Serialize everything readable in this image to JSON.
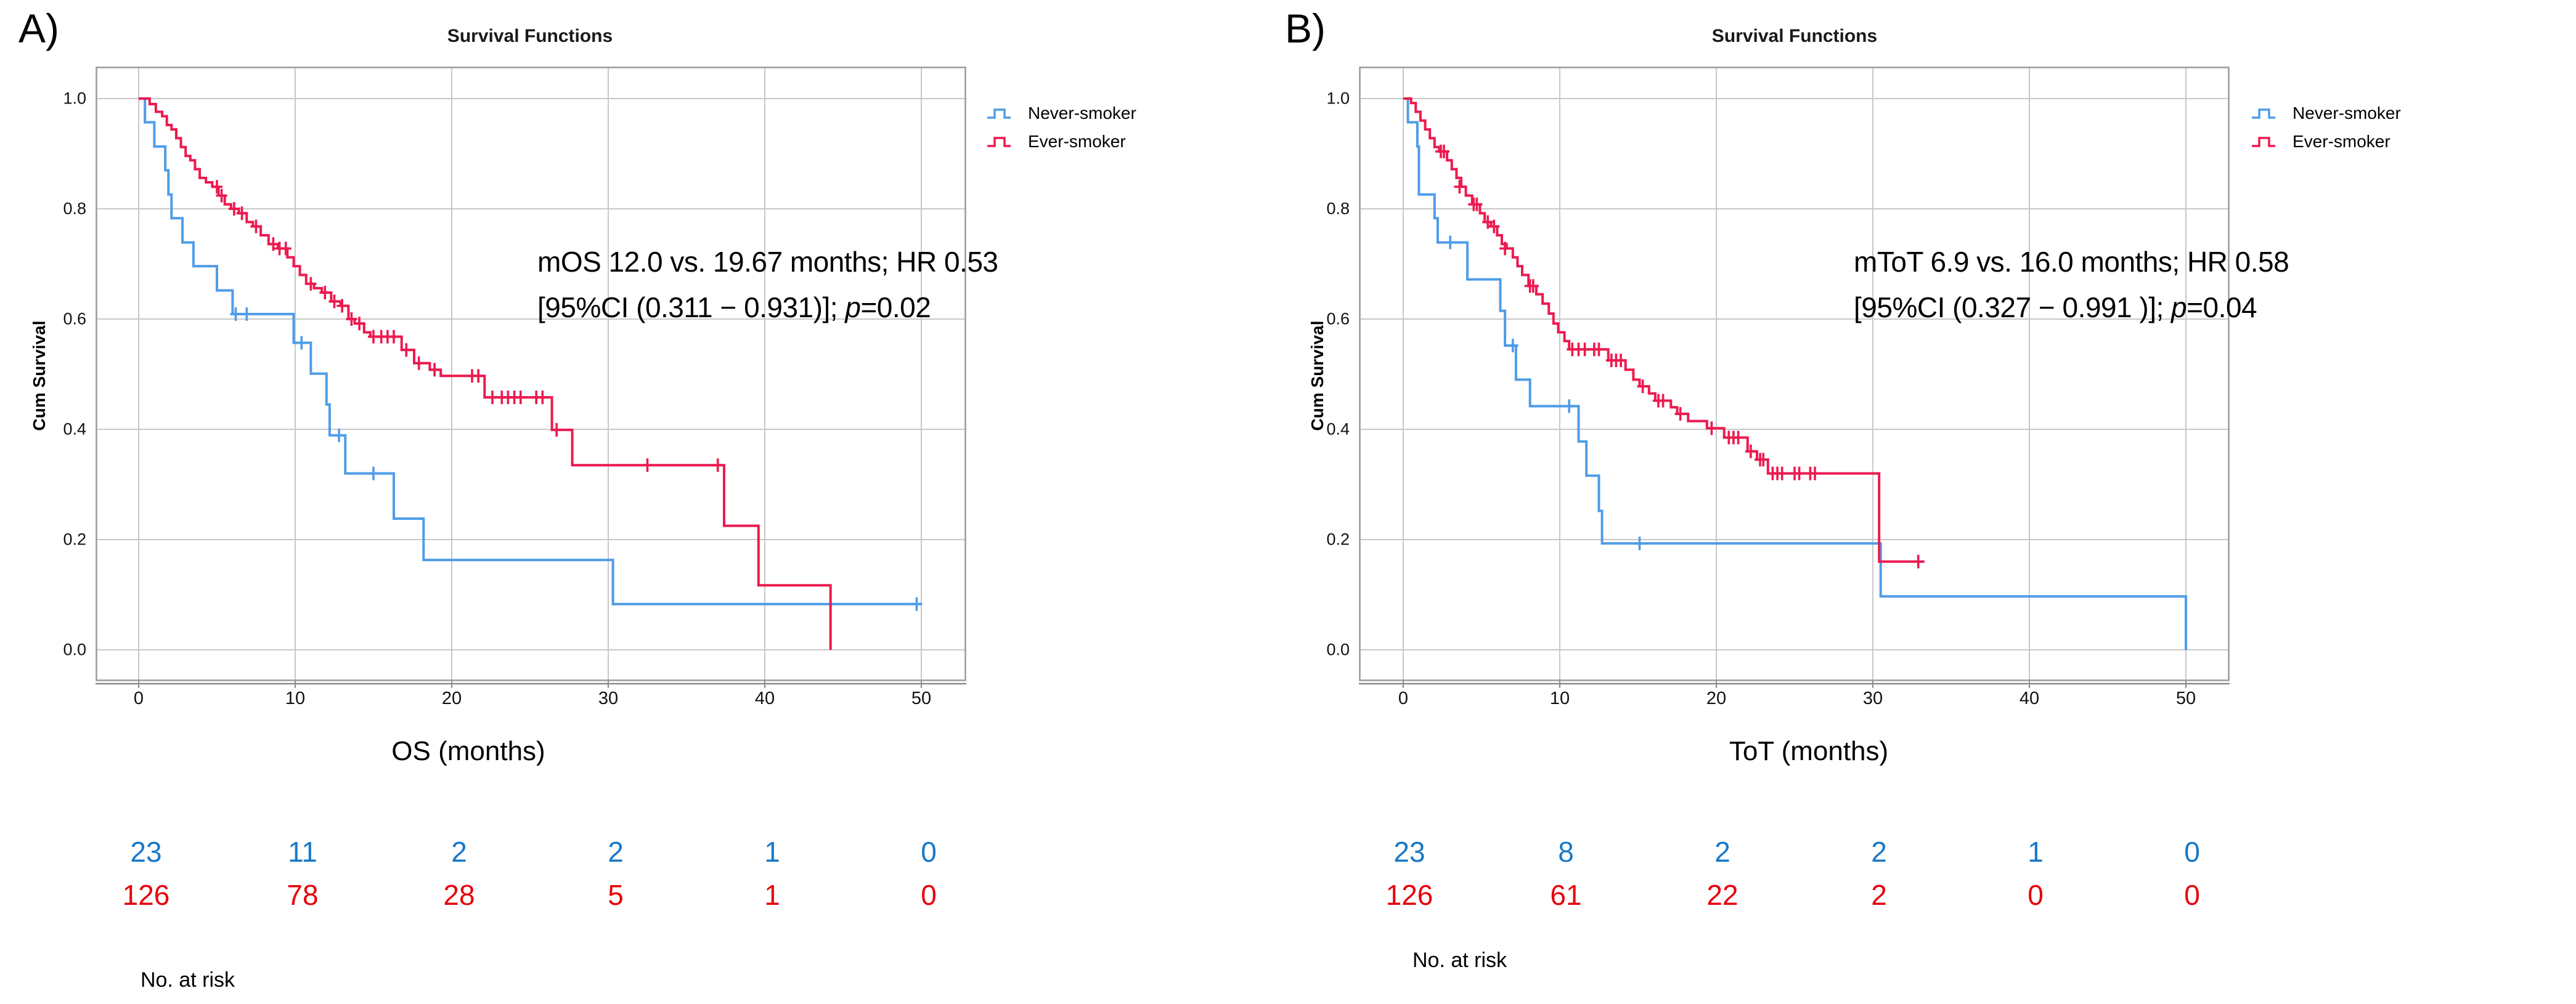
{
  "figure": {
    "background": "#ffffff",
    "grid_color": "#c8c8c8",
    "frame_color": "#9a9a9a"
  },
  "chart_data": [
    {
      "type": "line",
      "subtype": "kaplan-meier-step",
      "panel_label": "A)",
      "title": "Survival Functions",
      "xlabel": "OS (months)",
      "ylabel": "Cum Survival",
      "xlim": [
        0,
        50
      ],
      "ylim": [
        0.0,
        1.0
      ],
      "x_ticks": [
        0,
        10,
        20,
        30,
        40,
        50
      ],
      "y_tick_labels": [
        "1.0",
        "0.8",
        "0.6",
        "0.4",
        "0.2",
        "0.0"
      ],
      "grid": true,
      "legend_position": "right",
      "annotation": {
        "line1": "mOS 12.0 vs. 19.67  months; HR 0.53",
        "ci_text": "[95%CI (0.311 − 0.931)]; ",
        "p_label": "p",
        "p_value": "=0.02"
      },
      "series": [
        {
          "name": "Never-smoker",
          "color": "#4f9ce8",
          "points": [
            [
              0,
              1.0
            ],
            [
              0.4,
              0.957
            ],
            [
              1.0,
              0.913
            ],
            [
              1.7,
              0.87
            ],
            [
              1.9,
              0.826
            ],
            [
              2.1,
              0.783
            ],
            [
              2.8,
              0.739
            ],
            [
              3.5,
              0.696
            ],
            [
              5.0,
              0.652
            ],
            [
              6.0,
              0.609
            ],
            [
              9.9,
              0.557
            ],
            [
              11.0,
              0.501
            ],
            [
              12.0,
              0.445
            ],
            [
              12.2,
              0.389
            ],
            [
              13.2,
              0.32
            ],
            [
              16.3,
              0.238
            ],
            [
              18.2,
              0.163
            ],
            [
              30.3,
              0.083
            ],
            [
              50,
              0.083
            ]
          ],
          "censors": [
            [
              6.2,
              0.609
            ],
            [
              6.9,
              0.609
            ],
            [
              10.4,
              0.557
            ],
            [
              12.8,
              0.389
            ],
            [
              15.0,
              0.32
            ],
            [
              49.7,
              0.083
            ]
          ]
        },
        {
          "name": "Ever-smoker",
          "color": "#ec1a4f",
          "points": [
            [
              0,
              1.0
            ],
            [
              0.7,
              0.99
            ],
            [
              1.1,
              0.976
            ],
            [
              1.5,
              0.968
            ],
            [
              1.8,
              0.952
            ],
            [
              2.1,
              0.944
            ],
            [
              2.4,
              0.928
            ],
            [
              2.7,
              0.912
            ],
            [
              3.0,
              0.896
            ],
            [
              3.3,
              0.888
            ],
            [
              3.6,
              0.872
            ],
            [
              3.9,
              0.856
            ],
            [
              4.3,
              0.848
            ],
            [
              4.7,
              0.84
            ],
            [
              5.1,
              0.824
            ],
            [
              5.5,
              0.808
            ],
            [
              5.9,
              0.8
            ],
            [
              6.4,
              0.792
            ],
            [
              6.9,
              0.776
            ],
            [
              7.3,
              0.768
            ],
            [
              7.8,
              0.752
            ],
            [
              8.3,
              0.736
            ],
            [
              8.9,
              0.728
            ],
            [
              9.5,
              0.712
            ],
            [
              9.9,
              0.696
            ],
            [
              10.3,
              0.68
            ],
            [
              10.7,
              0.664
            ],
            [
              11.2,
              0.656
            ],
            [
              11.7,
              0.648
            ],
            [
              12.3,
              0.632
            ],
            [
              12.9,
              0.624
            ],
            [
              13.4,
              0.6
            ],
            [
              13.8,
              0.592
            ],
            [
              14.4,
              0.576
            ],
            [
              14.8,
              0.568
            ],
            [
              16.8,
              0.544
            ],
            [
              17.6,
              0.52
            ],
            [
              18.6,
              0.508
            ],
            [
              19.3,
              0.497
            ],
            [
              22.1,
              0.458
            ],
            [
              26.4,
              0.399
            ],
            [
              27.7,
              0.335
            ],
            [
              37.4,
              0.225
            ],
            [
              39.6,
              0.117
            ],
            [
              44.2,
              0.0
            ]
          ],
          "censors": [
            [
              5.0,
              0.84
            ],
            [
              5.3,
              0.824
            ],
            [
              6.1,
              0.8
            ],
            [
              6.6,
              0.792
            ],
            [
              7.5,
              0.768
            ],
            [
              8.6,
              0.736
            ],
            [
              9.0,
              0.728
            ],
            [
              9.4,
              0.728
            ],
            [
              11.0,
              0.664
            ],
            [
              11.9,
              0.648
            ],
            [
              12.5,
              0.632
            ],
            [
              13.0,
              0.624
            ],
            [
              13.6,
              0.6
            ],
            [
              14.1,
              0.592
            ],
            [
              15.0,
              0.568
            ],
            [
              15.5,
              0.568
            ],
            [
              15.9,
              0.568
            ],
            [
              16.3,
              0.568
            ],
            [
              17.1,
              0.544
            ],
            [
              17.9,
              0.52
            ],
            [
              18.9,
              0.508
            ],
            [
              21.3,
              0.497
            ],
            [
              21.7,
              0.497
            ],
            [
              22.6,
              0.458
            ],
            [
              23.2,
              0.458
            ],
            [
              23.6,
              0.458
            ],
            [
              24.0,
              0.458
            ],
            [
              24.4,
              0.458
            ],
            [
              25.4,
              0.458
            ],
            [
              25.8,
              0.458
            ],
            [
              26.7,
              0.399
            ],
            [
              32.5,
              0.335
            ],
            [
              37.0,
              0.335
            ]
          ]
        }
      ],
      "risk_table": {
        "label": "No. at risk",
        "rows": [
          {
            "series": "Never-smoker",
            "color": "#1878c8",
            "values": [
              "23",
              "11",
              "2",
              "2",
              "1",
              "0"
            ]
          },
          {
            "series": "Ever-smoker",
            "color": "#e8000b",
            "values": [
              "126",
              "78",
              "28",
              "5",
              "1",
              "0"
            ]
          }
        ]
      }
    },
    {
      "type": "line",
      "subtype": "kaplan-meier-step",
      "panel_label": "B)",
      "title": "Survival Functions",
      "xlabel": "ToT (months)",
      "ylabel": "Cum Survival",
      "xlim": [
        0,
        50
      ],
      "ylim": [
        0.0,
        1.0
      ],
      "x_ticks": [
        0,
        10,
        20,
        30,
        40,
        50
      ],
      "y_tick_labels": [
        "1.0",
        "0.8",
        "0.6",
        "0.4",
        "0.2",
        "0.0"
      ],
      "grid": true,
      "legend_position": "right",
      "annotation": {
        "line1": "mToT 6.9 vs. 16.0  months; HR 0.58",
        "ci_text": "[95%CI (0.327 − 0.991 )]; ",
        "p_label": "p",
        "p_value": "=0.04"
      },
      "series": [
        {
          "name": "Never-smoker",
          "color": "#4f9ce8",
          "points": [
            [
              0,
              1.0
            ],
            [
              0.3,
              0.957
            ],
            [
              0.9,
              0.913
            ],
            [
              1.0,
              0.826
            ],
            [
              2.0,
              0.783
            ],
            [
              2.2,
              0.739
            ],
            [
              4.1,
              0.672
            ],
            [
              6.2,
              0.615
            ],
            [
              6.5,
              0.552
            ],
            [
              7.2,
              0.49
            ],
            [
              8.1,
              0.442
            ],
            [
              11.2,
              0.378
            ],
            [
              11.7,
              0.316
            ],
            [
              12.5,
              0.252
            ],
            [
              12.7,
              0.193
            ],
            [
              30.5,
              0.097
            ],
            [
              50,
              0.0
            ]
          ],
          "censors": [
            [
              3.0,
              0.739
            ],
            [
              7.0,
              0.552
            ],
            [
              10.6,
              0.442
            ],
            [
              15.1,
              0.193
            ]
          ]
        },
        {
          "name": "Ever-smoker",
          "color": "#ec1a4f",
          "points": [
            [
              0,
              1.0
            ],
            [
              0.5,
              0.992
            ],
            [
              0.8,
              0.976
            ],
            [
              1.1,
              0.96
            ],
            [
              1.4,
              0.944
            ],
            [
              1.7,
              0.928
            ],
            [
              2.0,
              0.912
            ],
            [
              2.3,
              0.904
            ],
            [
              2.8,
              0.888
            ],
            [
              3.1,
              0.872
            ],
            [
              3.4,
              0.856
            ],
            [
              3.7,
              0.84
            ],
            [
              4.0,
              0.824
            ],
            [
              4.4,
              0.808
            ],
            [
              4.9,
              0.792
            ],
            [
              5.2,
              0.776
            ],
            [
              5.6,
              0.768
            ],
            [
              6.0,
              0.752
            ],
            [
              6.3,
              0.736
            ],
            [
              6.6,
              0.728
            ],
            [
              7.0,
              0.712
            ],
            [
              7.3,
              0.696
            ],
            [
              7.6,
              0.68
            ],
            [
              8.0,
              0.66
            ],
            [
              8.5,
              0.645
            ],
            [
              8.9,
              0.628
            ],
            [
              9.3,
              0.61
            ],
            [
              9.6,
              0.592
            ],
            [
              9.9,
              0.576
            ],
            [
              10.3,
              0.56
            ],
            [
              10.6,
              0.545
            ],
            [
              13.1,
              0.525
            ],
            [
              14.2,
              0.508
            ],
            [
              14.7,
              0.49
            ],
            [
              15.1,
              0.478
            ],
            [
              15.7,
              0.465
            ],
            [
              16.1,
              0.452
            ],
            [
              17.1,
              0.44
            ],
            [
              17.5,
              0.428
            ],
            [
              18.2,
              0.415
            ],
            [
              19.4,
              0.402
            ],
            [
              20.5,
              0.385
            ],
            [
              22.0,
              0.36
            ],
            [
              22.6,
              0.345
            ],
            [
              23.3,
              0.32
            ],
            [
              30.4,
              0.16
            ],
            [
              33.3,
              0.16
            ]
          ],
          "censors": [
            [
              2.4,
              0.904
            ],
            [
              2.6,
              0.904
            ],
            [
              3.6,
              0.84
            ],
            [
              4.5,
              0.808
            ],
            [
              4.7,
              0.808
            ],
            [
              5.4,
              0.776
            ],
            [
              5.8,
              0.768
            ],
            [
              6.5,
              0.728
            ],
            [
              8.1,
              0.66
            ],
            [
              8.3,
              0.66
            ],
            [
              10.8,
              0.545
            ],
            [
              11.2,
              0.545
            ],
            [
              11.6,
              0.545
            ],
            [
              12.2,
              0.545
            ],
            [
              12.5,
              0.545
            ],
            [
              13.3,
              0.525
            ],
            [
              13.6,
              0.525
            ],
            [
              13.9,
              0.525
            ],
            [
              15.3,
              0.478
            ],
            [
              16.3,
              0.452
            ],
            [
              16.6,
              0.452
            ],
            [
              17.7,
              0.428
            ],
            [
              19.7,
              0.402
            ],
            [
              20.8,
              0.385
            ],
            [
              21.1,
              0.385
            ],
            [
              21.4,
              0.385
            ],
            [
              22.2,
              0.36
            ],
            [
              22.8,
              0.345
            ],
            [
              23.0,
              0.345
            ],
            [
              23.6,
              0.32
            ],
            [
              23.9,
              0.32
            ],
            [
              24.2,
              0.32
            ],
            [
              25.0,
              0.32
            ],
            [
              25.3,
              0.32
            ],
            [
              26.0,
              0.32
            ],
            [
              26.3,
              0.32
            ],
            [
              32.9,
              0.16
            ]
          ]
        }
      ],
      "risk_table": {
        "label": "No. at risk",
        "rows": [
          {
            "series": "Never-smoker",
            "color": "#1878c8",
            "values": [
              "23",
              "8",
              "2",
              "2",
              "1",
              "0"
            ]
          },
          {
            "series": "Ever-smoker",
            "color": "#e8000b",
            "values": [
              "126",
              "61",
              "22",
              "2",
              "0",
              "0"
            ]
          }
        ]
      }
    }
  ]
}
